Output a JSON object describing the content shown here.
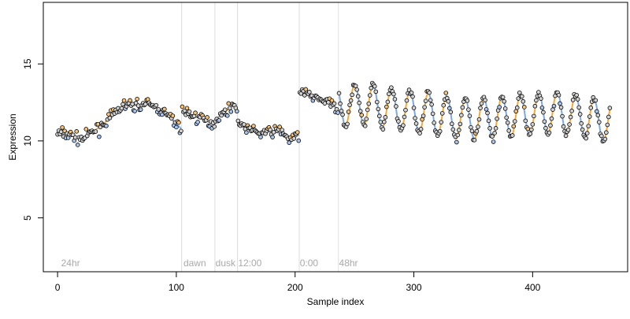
{
  "chart_data": {
    "type": "scatter",
    "title": "",
    "xlabel": "Sample index",
    "ylabel": "Expression",
    "xlim": [
      -12,
      480
    ],
    "ylim": [
      1.5,
      19
    ],
    "x_ticks": [
      0,
      100,
      200,
      300,
      400
    ],
    "y_ticks": [
      5,
      10,
      15
    ],
    "grid": false,
    "annotations": [
      {
        "label": "24hr",
        "x": 3,
        "divider": false
      },
      {
        "label": "dawn",
        "x": 106,
        "divider": true
      },
      {
        "label": "dusk",
        "x": 133,
        "divider": true
      },
      {
        "label": "12:00",
        "x": 152,
        "divider": true
      },
      {
        "label": "0:00",
        "x": 204,
        "divider": true
      },
      {
        "label": "48hr",
        "x": 237,
        "divider": true
      }
    ],
    "segments": [
      {
        "name": "24hr",
        "x_start": 0,
        "x_end": 104,
        "knots": [
          [
            0,
            10.5
          ],
          [
            10,
            10.4
          ],
          [
            20,
            10.1
          ],
          [
            30,
            10.6
          ],
          [
            40,
            11.2
          ],
          [
            50,
            11.9
          ],
          [
            55,
            12.3
          ],
          [
            65,
            12.3
          ],
          [
            75,
            12.4
          ],
          [
            85,
            12.1
          ],
          [
            95,
            11.5
          ],
          [
            104,
            10.8
          ]
        ]
      },
      {
        "name": "dawn",
        "x_start": 105,
        "x_end": 132,
        "knots": [
          [
            105,
            12.0
          ],
          [
            115,
            11.6
          ],
          [
            125,
            11.3
          ],
          [
            132,
            11.1
          ]
        ]
      },
      {
        "name": "dusk",
        "x_start": 133,
        "x_end": 151,
        "knots": [
          [
            133,
            11.4
          ],
          [
            140,
            11.8
          ],
          [
            147,
            12.3
          ],
          [
            151,
            12.2
          ]
        ]
      },
      {
        "name": "12:00",
        "x_start": 152,
        "x_end": 203,
        "knots": [
          [
            152,
            11.2
          ],
          [
            160,
            10.8
          ],
          [
            170,
            10.5
          ],
          [
            180,
            10.6
          ],
          [
            188,
            10.7
          ],
          [
            196,
            10.0
          ],
          [
            203,
            10.4
          ]
        ]
      },
      {
        "name": "0:00",
        "x_start": 204,
        "x_end": 236,
        "knots": [
          [
            204,
            13.2
          ],
          [
            215,
            12.9
          ],
          [
            225,
            12.6
          ],
          [
            236,
            12.1
          ]
        ]
      },
      {
        "name": "48hr",
        "x_start": 237,
        "x_end": 465,
        "knots": [
          [
            237,
            12.3
          ],
          [
            260,
            12.4
          ],
          [
            280,
            12.1
          ],
          [
            300,
            11.9
          ],
          [
            320,
            11.7
          ],
          [
            340,
            11.4
          ],
          [
            360,
            11.5
          ],
          [
            380,
            11.6
          ],
          [
            400,
            11.7
          ],
          [
            420,
            11.9
          ],
          [
            440,
            11.6
          ],
          [
            465,
            11.2
          ]
        ],
        "oscillation": {
          "amplitude": 1.35,
          "period": 15.5,
          "phase": 2.5
        }
      }
    ]
  }
}
